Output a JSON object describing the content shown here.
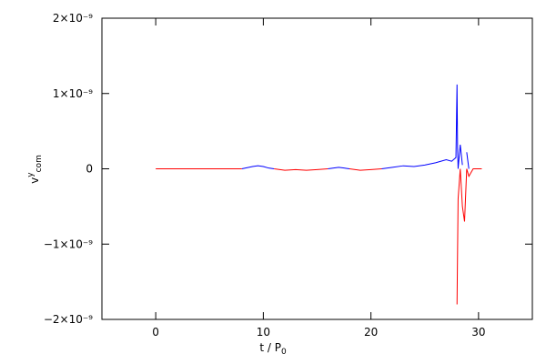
{
  "chart_data": {
    "type": "line",
    "x_label": {
      "base": "t / P",
      "sub": "0"
    },
    "y_label": {
      "base": "v",
      "sup": "y",
      "sub": "com"
    },
    "xlim": [
      -5,
      35
    ],
    "xticks": [
      0,
      10,
      20,
      30
    ],
    "ylim": [
      -2e-09,
      2e-09
    ],
    "yticks": [
      {
        "value": -2e-09,
        "label": "−2×10⁻⁹"
      },
      {
        "value": -1e-09,
        "label": "−1×10⁻⁹"
      },
      0,
      {
        "value": 1e-09,
        "label": "1×10⁻⁹"
      },
      {
        "value": 2e-09,
        "label": "2×10⁻⁹"
      }
    ],
    "x": [
      0,
      2,
      4,
      6,
      8,
      9,
      9.5,
      10,
      10.5,
      11,
      12,
      13,
      14,
      15,
      16,
      17,
      17.5,
      18,
      19,
      20,
      21,
      22,
      23,
      24,
      25,
      26,
      27,
      27.5,
      27.9,
      28,
      28.05,
      28.1,
      28.3,
      28.5,
      28.7,
      28.9,
      29.1,
      29.5,
      30.3
    ],
    "series": [
      {
        "color": "#0000ff",
        "values": [
          null,
          null,
          null,
          null,
          0,
          3e-11,
          4e-11,
          3e-11,
          1e-11,
          0,
          null,
          null,
          null,
          null,
          0,
          2e-11,
          1e-11,
          0,
          null,
          null,
          0,
          2e-11,
          4e-11,
          3e-11,
          5e-11,
          8e-11,
          1.2e-10,
          1e-10,
          1.5e-10,
          1.12e-09,
          3e-10,
          0,
          3.2e-10,
          5e-11,
          null,
          2.2e-10,
          0,
          null,
          null
        ]
      },
      {
        "color": "#ff0000",
        "values": [
          0,
          0,
          0,
          0,
          0,
          null,
          null,
          null,
          null,
          0,
          -2e-11,
          -1e-11,
          -2e-11,
          -1e-11,
          0,
          null,
          null,
          0,
          -2e-11,
          -1e-11,
          0,
          null,
          null,
          null,
          null,
          null,
          null,
          null,
          null,
          -1.8e-09,
          -1.1e-09,
          -4e-10,
          0,
          -5e-10,
          -7e-10,
          0,
          -1e-10,
          0,
          0
        ]
      }
    ]
  }
}
